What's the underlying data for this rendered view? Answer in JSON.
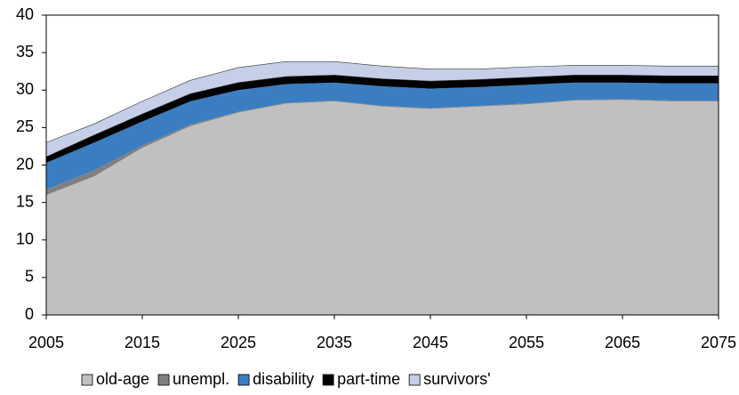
{
  "chart_data": {
    "type": "stacked_area",
    "x": [
      2005,
      2010,
      2015,
      2020,
      2025,
      2030,
      2035,
      2040,
      2045,
      2050,
      2055,
      2060,
      2065,
      2070,
      2075
    ],
    "xlim": [
      2005,
      2075
    ],
    "xticks": [
      2005,
      2015,
      2025,
      2035,
      2045,
      2055,
      2065,
      2075
    ],
    "ylim": [
      0,
      40
    ],
    "yticks": [
      0,
      5,
      10,
      15,
      20,
      25,
      30,
      35,
      40
    ],
    "legend": "bottom",
    "series": [
      {
        "name": "old-age",
        "color": "#c0c0c0",
        "values": [
          16,
          18.5,
          22.3,
          25.2,
          27,
          28.2,
          28.5,
          27.8,
          27.5,
          27.8,
          28.1,
          28.6,
          28.7,
          28.5,
          28.5
        ]
      },
      {
        "name": "unempl.",
        "color": "#808080",
        "values": [
          0.7,
          0.8,
          0.3,
          0.2,
          0.1,
          0.1,
          0.1,
          0.1,
          0.1,
          0.1,
          0.1,
          0.1,
          0.1,
          0.1,
          0.1
        ]
      },
      {
        "name": "disability",
        "color": "#3b7dc1",
        "values": [
          3.6,
          3.7,
          3.2,
          3.1,
          2.9,
          2.5,
          2.4,
          2.6,
          2.6,
          2.5,
          2.5,
          2.3,
          2.2,
          2.3,
          2.3
        ]
      },
      {
        "name": "part-time",
        "color": "#000000",
        "values": [
          0.8,
          1,
          1,
          1,
          1,
          1,
          1,
          1,
          1,
          1,
          1,
          1,
          1,
          1,
          1
        ]
      },
      {
        "name": "survivors'",
        "color": "#c6cee8",
        "values": [
          1.9,
          1.5,
          1.7,
          1.8,
          2,
          2,
          1.8,
          1.7,
          1.6,
          1.4,
          1.4,
          1.3,
          1.3,
          1.3,
          1.3
        ]
      }
    ]
  }
}
